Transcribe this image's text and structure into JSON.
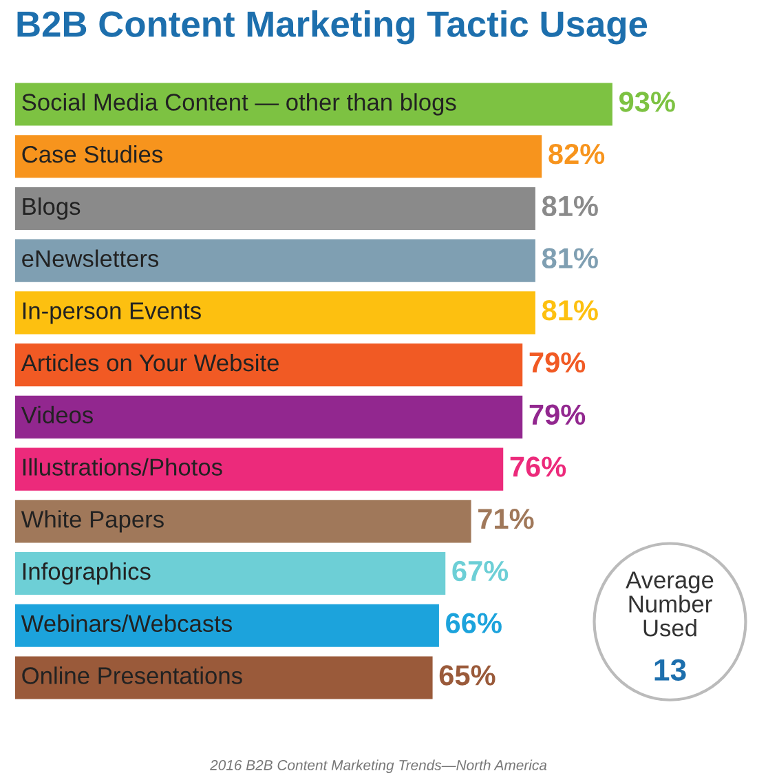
{
  "chart_data": {
    "type": "bar",
    "orientation": "horizontal",
    "title": "B2B Content Marketing Tactic Usage",
    "categories": [
      "Social Media Content — other than blogs",
      "Case Studies",
      "Blogs",
      "eNewsletters",
      "In-person Events",
      "Articles on Your Website",
      "Videos",
      "Illustrations/Photos",
      "White Papers",
      "Infographics",
      "Webinars/Webcasts",
      "Online Presentations"
    ],
    "values": [
      93,
      82,
      81,
      81,
      81,
      79,
      79,
      76,
      71,
      67,
      66,
      65
    ],
    "value_labels": [
      "93%",
      "82%",
      "81%",
      "81%",
      "81%",
      "79%",
      "79%",
      "76%",
      "71%",
      "67%",
      "66%",
      "65%"
    ],
    "colors": [
      "#7dc242",
      "#f7941d",
      "#8a8a8a",
      "#7f9fb2",
      "#fdc010",
      "#f15a24",
      "#92278f",
      "#ec2a7b",
      "#a0785a",
      "#6dcfd6",
      "#1ca3dc",
      "#9a5a3a"
    ],
    "annotations": [
      "Average Number Used",
      "13",
      "2016 B2B Content Marketing Trends—North America"
    ]
  }
}
